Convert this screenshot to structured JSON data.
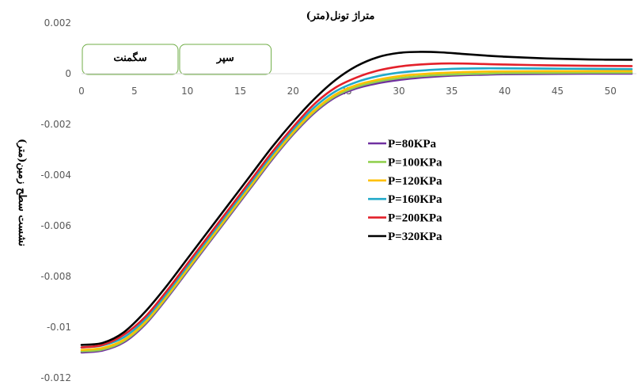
{
  "chart_data": {
    "type": "line",
    "title": "متراژ تونل(متر)",
    "xlabel": "",
    "ylabel": "نشست سطح زمین(متر)",
    "xlim": [
      0,
      52
    ],
    "ylim": [
      -0.012,
      0.002
    ],
    "x_ticks": [
      0,
      5,
      10,
      15,
      20,
      25,
      30,
      35,
      40,
      45,
      50
    ],
    "x_tick_labels": [
      "0",
      "5",
      "10",
      "15",
      "20",
      "25",
      "30",
      "35",
      "40",
      "45",
      "50"
    ],
    "y_ticks": [
      0.002,
      0,
      -0.002,
      -0.004,
      -0.006,
      -0.008,
      -0.01,
      -0.012
    ],
    "y_tick_labels": [
      "0.002",
      "0",
      "-0.002",
      "-0.004",
      "-0.006",
      "-0.008",
      "-0.01",
      "-0.012"
    ],
    "grid": false,
    "legend_position": "center-right",
    "annotations": [
      {
        "text": "سگمنت",
        "x_range": [
          0,
          9.2
        ]
      },
      {
        "text": "سپر",
        "x_range": [
          9.2,
          18
        ]
      }
    ],
    "x": [
      0,
      2,
      4,
      6,
      8,
      10,
      12,
      14,
      16,
      18,
      20,
      22,
      24,
      26,
      28,
      30,
      32,
      34,
      36,
      38,
      40,
      44,
      48,
      52
    ],
    "series": [
      {
        "name": "P=80KPa",
        "color": "#7030a0",
        "values": [
          -0.011,
          -0.01092,
          -0.0106,
          -0.0099,
          -0.0089,
          -0.0078,
          -0.0067,
          -0.0056,
          -0.0045,
          -0.0034,
          -0.0024,
          -0.00155,
          -0.00093,
          -0.00058,
          -0.00038,
          -0.00025,
          -0.00016,
          -0.0001,
          -6e-05,
          -4e-05,
          -2e-05,
          -1e-05,
          0.0,
          0.0
        ]
      },
      {
        "name": "P=100KPa",
        "color": "#92d050",
        "values": [
          -0.01095,
          -0.01088,
          -0.01055,
          -0.00985,
          -0.00885,
          -0.00775,
          -0.00665,
          -0.00555,
          -0.00445,
          -0.00335,
          -0.00235,
          -0.0015,
          -0.00088,
          -0.00052,
          -0.00031,
          -0.00018,
          -0.0001,
          -5e-05,
          -2e-05,
          0.0,
          2e-05,
          3e-05,
          4e-05,
          4e-05
        ]
      },
      {
        "name": "P=120KPa",
        "color": "#ffc000",
        "values": [
          -0.0109,
          -0.01082,
          -0.0105,
          -0.0098,
          -0.0088,
          -0.0077,
          -0.0066,
          -0.0055,
          -0.0044,
          -0.0033,
          -0.0023,
          -0.00145,
          -0.00082,
          -0.00045,
          -0.00024,
          -0.0001,
          -2e-05,
          3e-05,
          6e-05,
          8e-05,
          9e-05,
          0.0001,
          0.0001,
          0.0001
        ]
      },
      {
        "name": "P=160KPa",
        "color": "#21a9c9",
        "values": [
          -0.0108,
          -0.01072,
          -0.0104,
          -0.0097,
          -0.0087,
          -0.0076,
          -0.0065,
          -0.0054,
          -0.0043,
          -0.0032,
          -0.0022,
          -0.00133,
          -0.0007,
          -0.00033,
          -0.0001,
          4e-05,
          0.00012,
          0.00017,
          0.0002,
          0.00021,
          0.00021,
          0.0002,
          0.00019,
          0.00018
        ]
      },
      {
        "name": "P=200KPa",
        "color": "#e3202a",
        "values": [
          -0.0108,
          -0.0107,
          -0.0103,
          -0.0096,
          -0.0086,
          -0.0075,
          -0.0064,
          -0.0053,
          -0.0042,
          -0.0031,
          -0.0021,
          -0.0012,
          -0.00055,
          -0.00015,
          0.00012,
          0.00028,
          0.00036,
          0.0004,
          0.0004,
          0.00038,
          0.00036,
          0.00033,
          0.00031,
          0.0003
        ]
      },
      {
        "name": "P=320KPa",
        "color": "#000000",
        "values": [
          -0.0107,
          -0.01062,
          -0.0102,
          -0.0094,
          -0.0084,
          -0.0073,
          -0.0062,
          -0.0051,
          -0.004,
          -0.0029,
          -0.0019,
          -0.001,
          -0.00025,
          0.0003,
          0.00065,
          0.00082,
          0.00086,
          0.00084,
          0.00078,
          0.00072,
          0.00067,
          0.0006,
          0.00056,
          0.00055
        ]
      }
    ]
  }
}
